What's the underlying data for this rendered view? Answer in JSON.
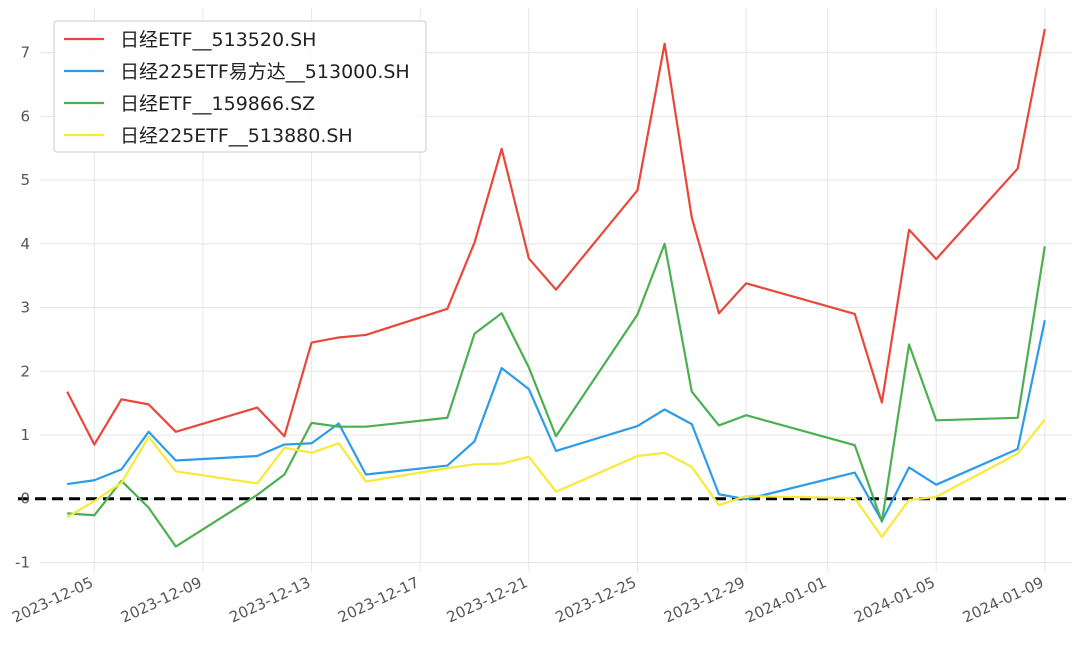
{
  "chart_data": {
    "type": "line",
    "title": "",
    "xlabel": "",
    "ylabel": "",
    "xlim": [
      "2023-12-03",
      "2024-01-10"
    ],
    "ylim": [
      -1.15,
      7.7
    ],
    "grid": true,
    "legend_position": "top-left",
    "reference_line": {
      "y": 0,
      "style": "dashed",
      "color": "#000000"
    },
    "x_ticks": [
      "2023-12-05",
      "2023-12-09",
      "2023-12-13",
      "2023-12-17",
      "2023-12-21",
      "2023-12-25",
      "2023-12-29",
      "2024-01-01",
      "2024-01-05",
      "2024-01-09"
    ],
    "y_ticks": [
      -1,
      0,
      1,
      2,
      3,
      4,
      5,
      6,
      7
    ],
    "x": [
      "2023-12-04",
      "2023-12-05",
      "2023-12-06",
      "2023-12-07",
      "2023-12-08",
      "2023-12-11",
      "2023-12-12",
      "2023-12-13",
      "2023-12-14",
      "2023-12-15",
      "2023-12-18",
      "2023-12-19",
      "2023-12-20",
      "2023-12-21",
      "2023-12-22",
      "2023-12-25",
      "2023-12-26",
      "2023-12-27",
      "2023-12-28",
      "2023-12-29",
      "2024-01-02",
      "2024-01-03",
      "2024-01-04",
      "2024-01-05",
      "2024-01-08",
      "2024-01-09"
    ],
    "series": [
      {
        "name": "日经ETF__513520.SH",
        "color": "#e8473a",
        "values": [
          1.68,
          0.85,
          1.56,
          1.48,
          1.05,
          1.43,
          0.98,
          2.45,
          2.53,
          2.57,
          2.98,
          4.02,
          5.49,
          3.77,
          3.28,
          4.84,
          7.14,
          4.41,
          2.91,
          3.38,
          2.9,
          1.51,
          4.22,
          3.76,
          5.18,
          7.37
        ]
      },
      {
        "name": "日经225ETF易方达__513000.SH",
        "color": "#2c9be8",
        "values": [
          0.23,
          0.29,
          0.46,
          1.05,
          0.6,
          0.67,
          0.85,
          0.87,
          1.18,
          0.38,
          0.52,
          0.9,
          2.05,
          1.72,
          0.75,
          1.14,
          1.4,
          1.17,
          0.07,
          -0.01,
          0.41,
          -0.35,
          0.49,
          0.22,
          0.78,
          2.8
        ]
      },
      {
        "name": "日经ETF__159866.SZ",
        "color": "#4caf50",
        "values": [
          -0.23,
          -0.26,
          0.28,
          -0.14,
          -0.75,
          0.06,
          0.38,
          1.19,
          1.13,
          1.13,
          1.27,
          2.59,
          2.91,
          2.06,
          0.98,
          2.89,
          4.0,
          1.68,
          1.15,
          1.31,
          0.84,
          -0.36,
          2.42,
          1.23,
          1.27,
          3.96
        ]
      },
      {
        "name": "日经225ETF__513880.SH",
        "color": "#f9e937",
        "values": [
          -0.29,
          -0.04,
          0.25,
          0.97,
          0.43,
          0.24,
          0.8,
          0.72,
          0.87,
          0.27,
          0.48,
          0.54,
          0.55,
          0.66,
          0.11,
          0.67,
          0.72,
          0.5,
          -0.1,
          0.04,
          0.01,
          -0.6,
          -0.02,
          0.03,
          0.71,
          1.24
        ]
      }
    ]
  }
}
